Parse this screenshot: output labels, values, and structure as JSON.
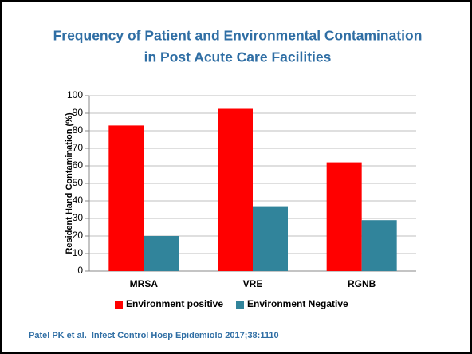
{
  "chart_data": {
    "type": "bar",
    "title_lines": [
      "Frequency of Patient and Environmental Contamination",
      "in Post Acute Care Facilities"
    ],
    "ylabel": "Resident Hand Contamination (%)",
    "categories": [
      "MRSA",
      "VRE",
      "RGNB"
    ],
    "series": [
      {
        "name": "Environment positive",
        "color": "#ff0000",
        "values": [
          83,
          92.5,
          62
        ]
      },
      {
        "name": "Environment Negative",
        "color": "#31849b",
        "values": [
          20,
          37,
          29
        ]
      }
    ],
    "ylim": [
      0,
      100
    ],
    "yticks": [
      0,
      10,
      20,
      30,
      40,
      50,
      60,
      70,
      80,
      90,
      100
    ],
    "grid": true,
    "legend": "bottom",
    "source": "Patel PK et al.  Infect Control Hosp Epidemiolo 2017;38:1110"
  }
}
